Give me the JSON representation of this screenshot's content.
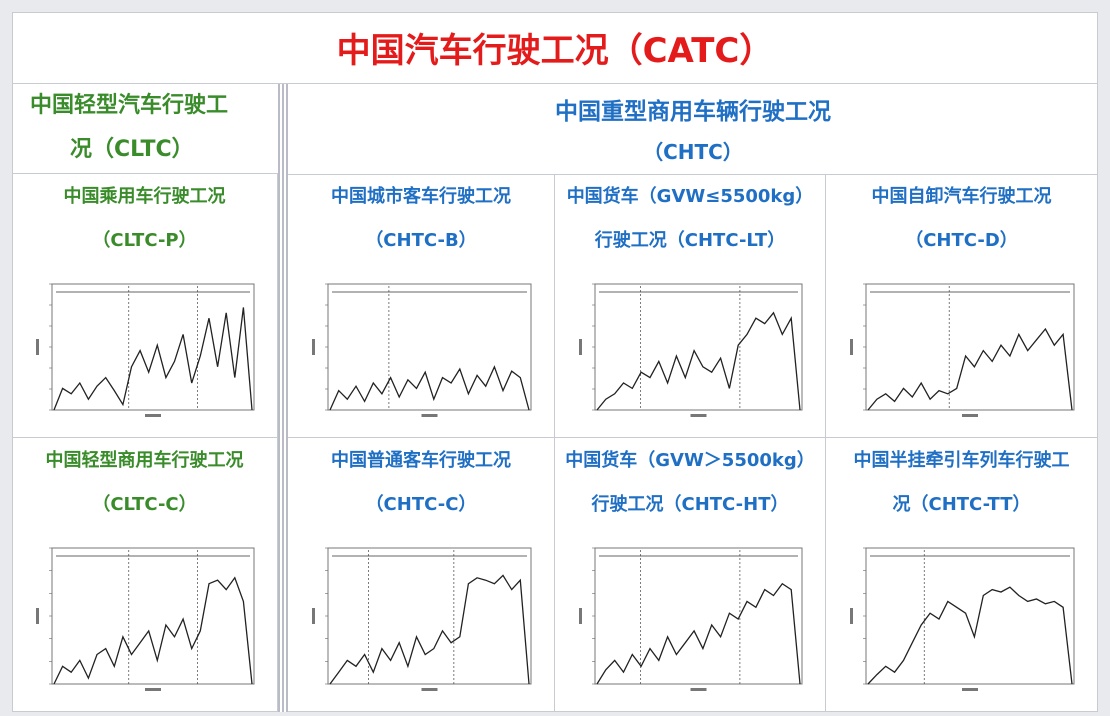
{
  "title": "中国汽车行驶工况（CATC）",
  "left_header": {
    "line1": "中国轻型汽车行驶工",
    "line2": "况（CLTC）"
  },
  "right_header": {
    "line1": "中国重型商用车辆行驶工况",
    "line2": "（CHTC）"
  },
  "colors": {
    "title": "#e41b1b",
    "green": "#3a8c2b",
    "blue": "#1f6fc4"
  },
  "cells": [
    {
      "line1": "中国乘用车行驶工况",
      "line2": "（CLTC-P）",
      "color": "green",
      "profile": [
        0,
        20,
        15,
        25,
        10,
        22,
        30,
        18,
        5,
        40,
        55,
        35,
        60,
        30,
        45,
        70,
        25,
        50,
        85,
        40,
        90,
        30,
        95,
        0
      ],
      "phases": [
        0.38,
        0.72
      ]
    },
    {
      "line1": "中国城市客车行驶工况",
      "line2": "（CHTC-B）",
      "color": "blue",
      "profile": [
        0,
        18,
        10,
        22,
        8,
        25,
        15,
        30,
        12,
        28,
        20,
        35,
        10,
        30,
        25,
        38,
        15,
        32,
        22,
        40,
        18,
        36,
        30,
        0
      ],
      "phases": [
        0.3
      ]
    },
    {
      "line1": "中国货车（GVW≤5500kg）",
      "line2": "行驶工况（CHTC-LT）",
      "color": "blue",
      "profile": [
        0,
        10,
        15,
        25,
        20,
        35,
        30,
        45,
        25,
        50,
        30,
        55,
        40,
        35,
        48,
        20,
        60,
        70,
        85,
        80,
        90,
        70,
        85,
        0
      ],
      "phases": [
        0.22,
        0.7
      ]
    },
    {
      "line1": "中国自卸汽车行驶工况",
      "line2": "（CHTC-D）",
      "color": "blue",
      "profile": [
        0,
        10,
        15,
        8,
        20,
        12,
        25,
        10,
        18,
        15,
        20,
        50,
        40,
        55,
        45,
        60,
        50,
        70,
        55,
        65,
        75,
        60,
        70,
        0
      ],
      "phases": [
        0.4
      ]
    },
    {
      "line1": "中国轻型商用车行驶工况",
      "line2": "（CLTC-C）",
      "color": "green",
      "profile": [
        0,
        15,
        10,
        20,
        5,
        25,
        30,
        15,
        40,
        25,
        35,
        45,
        20,
        50,
        40,
        55,
        30,
        45,
        85,
        88,
        80,
        90,
        70,
        0
      ],
      "phases": [
        0.38,
        0.72
      ]
    },
    {
      "line1": "中国普通客车行驶工况",
      "line2": "（CHTC-C）",
      "color": "blue",
      "profile": [
        0,
        10,
        20,
        15,
        25,
        10,
        30,
        20,
        35,
        15,
        40,
        25,
        30,
        45,
        35,
        40,
        85,
        90,
        88,
        85,
        92,
        80,
        88,
        0
      ],
      "phases": [
        0.2,
        0.62
      ]
    },
    {
      "line1": "中国货车（GVW＞5500kg）",
      "line2": "行驶工况（CHTC-HT）",
      "color": "blue",
      "profile": [
        0,
        12,
        20,
        10,
        25,
        15,
        30,
        20,
        40,
        25,
        35,
        45,
        30,
        50,
        40,
        60,
        55,
        70,
        65,
        80,
        75,
        85,
        80,
        0
      ],
      "phases": [
        0.22,
        0.7
      ]
    },
    {
      "line1": "中国半挂牵引车列车行驶工",
      "line2": "况（CHTC-TT）",
      "color": "blue",
      "profile": [
        0,
        8,
        15,
        10,
        20,
        35,
        50,
        60,
        55,
        70,
        65,
        60,
        40,
        75,
        80,
        78,
        82,
        75,
        70,
        72,
        68,
        70,
        65,
        0
      ],
      "phases": [
        0.28
      ]
    }
  ]
}
